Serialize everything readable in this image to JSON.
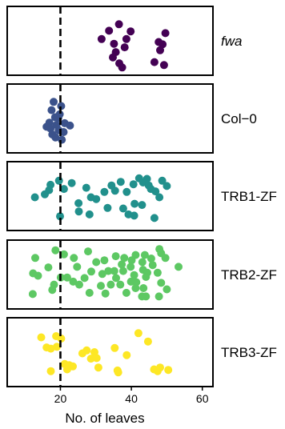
{
  "chart_data": {
    "type": "scatter",
    "description_free": true,
    "xlabel": "No. of leaves",
    "xlim": [
      5,
      63
    ],
    "xticks": [
      20,
      40,
      60
    ],
    "reference_line": {
      "x": 20,
      "style": "dashed",
      "color": "#000000"
    },
    "grid": false,
    "legend": "none",
    "facets": [
      {
        "label": "fwa",
        "italic": true,
        "color": "#440154",
        "points": [
          [
            36.5,
            0.78
          ],
          [
            33.7,
            0.67
          ],
          [
            39.8,
            0.66
          ],
          [
            49.6,
            0.63
          ],
          [
            31.6,
            0.53
          ],
          [
            38.6,
            0.53
          ],
          [
            47.7,
            0.48
          ],
          [
            35.1,
            0.45
          ],
          [
            48.8,
            0.44
          ],
          [
            38.1,
            0.39
          ],
          [
            48.1,
            0.34
          ],
          [
            35.6,
            0.31
          ],
          [
            34.8,
            0.22
          ],
          [
            46.5,
            0.14
          ],
          [
            36.6,
            0.12
          ],
          [
            49.2,
            0.09
          ],
          [
            37.4,
            0.05
          ]
        ]
      },
      {
        "label": "Col−0",
        "italic": false,
        "color": "#3b528b",
        "points": [
          [
            18.1,
            0.78
          ],
          [
            20.2,
            0.71
          ],
          [
            17.5,
            0.64
          ],
          [
            19.8,
            0.57
          ],
          [
            18.5,
            0.52
          ],
          [
            16.9,
            0.43
          ],
          [
            18.9,
            0.39
          ],
          [
            21.2,
            0.42
          ],
          [
            17.2,
            0.33
          ],
          [
            19.5,
            0.3
          ],
          [
            20.9,
            0.27
          ],
          [
            22.7,
            0.38
          ],
          [
            16.1,
            0.36
          ],
          [
            17.7,
            0.23
          ],
          [
            18.6,
            0.18
          ],
          [
            20.4,
            0.14
          ],
          [
            19.4,
            0.51
          ]
        ]
      },
      {
        "label": "TRB1-ZF",
        "italic": false,
        "color": "#21908c",
        "points": [
          [
            42.2,
            0.8
          ],
          [
            44.4,
            0.79
          ],
          [
            48.7,
            0.76
          ],
          [
            37.0,
            0.74
          ],
          [
            19.6,
            0.76
          ],
          [
            23.2,
            0.72
          ],
          [
            43.3,
            0.73
          ],
          [
            34.4,
            0.68
          ],
          [
            40.6,
            0.7
          ],
          [
            17.2,
            0.69
          ],
          [
            44.9,
            0.68
          ],
          [
            27.3,
            0.64
          ],
          [
            50.0,
            0.67
          ],
          [
            21.0,
            0.62
          ],
          [
            45.5,
            0.62
          ],
          [
            16.8,
            0.6
          ],
          [
            35.4,
            0.59
          ],
          [
            46.8,
            0.58
          ],
          [
            38.7,
            0.57
          ],
          [
            32.4,
            0.57
          ],
          [
            15.6,
            0.53
          ],
          [
            12.8,
            0.48
          ],
          [
            28.6,
            0.48
          ],
          [
            47.9,
            0.48
          ],
          [
            30.1,
            0.45
          ],
          [
            25.1,
            0.38
          ],
          [
            40.9,
            0.37
          ],
          [
            43.0,
            0.35
          ],
          [
            33.3,
            0.3
          ],
          [
            37.7,
            0.29
          ],
          [
            25.2,
            0.24
          ],
          [
            28.2,
            0.19
          ],
          [
            39.2,
            0.19
          ],
          [
            40.8,
            0.17
          ],
          [
            46.5,
            0.13
          ],
          [
            19.9,
            0.16
          ]
        ]
      },
      {
        "label": "TRB2-ZF",
        "italic": false,
        "color": "#5dc863",
        "points": [
          [
            47.9,
            0.93
          ],
          [
            18.6,
            0.91
          ],
          [
            27.8,
            0.89
          ],
          [
            48.4,
            0.86
          ],
          [
            21.0,
            0.84
          ],
          [
            23.8,
            0.78
          ],
          [
            43.8,
            0.83
          ],
          [
            41.2,
            0.83
          ],
          [
            35.6,
            0.81
          ],
          [
            12.9,
            0.78
          ],
          [
            38.0,
            0.78
          ],
          [
            45.6,
            0.77
          ],
          [
            49.6,
            0.78
          ],
          [
            32.4,
            0.74
          ],
          [
            40.1,
            0.74
          ],
          [
            43.1,
            0.71
          ],
          [
            30.1,
            0.71
          ],
          [
            37.3,
            0.67
          ],
          [
            46.0,
            0.66
          ],
          [
            53.3,
            0.63
          ],
          [
            16.6,
            0.62
          ],
          [
            39.8,
            0.63
          ],
          [
            24.7,
            0.63
          ],
          [
            43.3,
            0.58
          ],
          [
            33.5,
            0.56
          ],
          [
            35.2,
            0.56
          ],
          [
            37.7,
            0.56
          ],
          [
            28.7,
            0.55
          ],
          [
            12.3,
            0.52
          ],
          [
            13.7,
            0.48
          ],
          [
            31.8,
            0.51
          ],
          [
            44.5,
            0.53
          ],
          [
            47.4,
            0.53
          ],
          [
            40.8,
            0.49
          ],
          [
            44.1,
            0.46
          ],
          [
            20.1,
            0.45
          ],
          [
            21.9,
            0.45
          ],
          [
            26.8,
            0.44
          ],
          [
            35.7,
            0.44
          ],
          [
            23.6,
            0.38
          ],
          [
            39.9,
            0.38
          ],
          [
            41.4,
            0.37
          ],
          [
            18.2,
            0.33
          ],
          [
            25.3,
            0.33
          ],
          [
            48.4,
            0.36
          ],
          [
            31.4,
            0.31
          ],
          [
            34.2,
            0.33
          ],
          [
            36.9,
            0.33
          ],
          [
            41.2,
            0.27
          ],
          [
            43.4,
            0.27
          ],
          [
            50.0,
            0.25
          ],
          [
            17.7,
            0.24
          ],
          [
            12.2,
            0.17
          ],
          [
            28.2,
            0.19
          ],
          [
            32.7,
            0.18
          ],
          [
            38.6,
            0.19
          ],
          [
            43.0,
            0.13
          ],
          [
            44.1,
            0.13
          ],
          [
            47.8,
            0.13
          ]
        ]
      },
      {
        "label": "TRB3-ZF",
        "italic": false,
        "color": "#fde725",
        "points": [
          [
            42.0,
            0.82
          ],
          [
            18.8,
            0.77
          ],
          [
            20.2,
            0.73
          ],
          [
            14.6,
            0.75
          ],
          [
            44.7,
            0.68
          ],
          [
            16.1,
            0.58
          ],
          [
            17.3,
            0.56
          ],
          [
            19.0,
            0.59
          ],
          [
            35.3,
            0.57
          ],
          [
            27.4,
            0.53
          ],
          [
            29.6,
            0.5
          ],
          [
            26.2,
            0.48
          ],
          [
            38.7,
            0.45
          ],
          [
            28.6,
            0.39
          ],
          [
            30.2,
            0.4
          ],
          [
            21.2,
            0.3
          ],
          [
            23.5,
            0.26
          ],
          [
            22.5,
            0.28
          ],
          [
            30.7,
            0.24
          ],
          [
            48.1,
            0.24
          ],
          [
            17.3,
            0.18
          ],
          [
            21.9,
            0.21
          ],
          [
            36.3,
            0.16
          ],
          [
            46.4,
            0.21
          ],
          [
            50.4,
            0.2
          ],
          [
            47.4,
            0.18
          ],
          [
            36.1,
            0.19
          ]
        ]
      }
    ]
  }
}
